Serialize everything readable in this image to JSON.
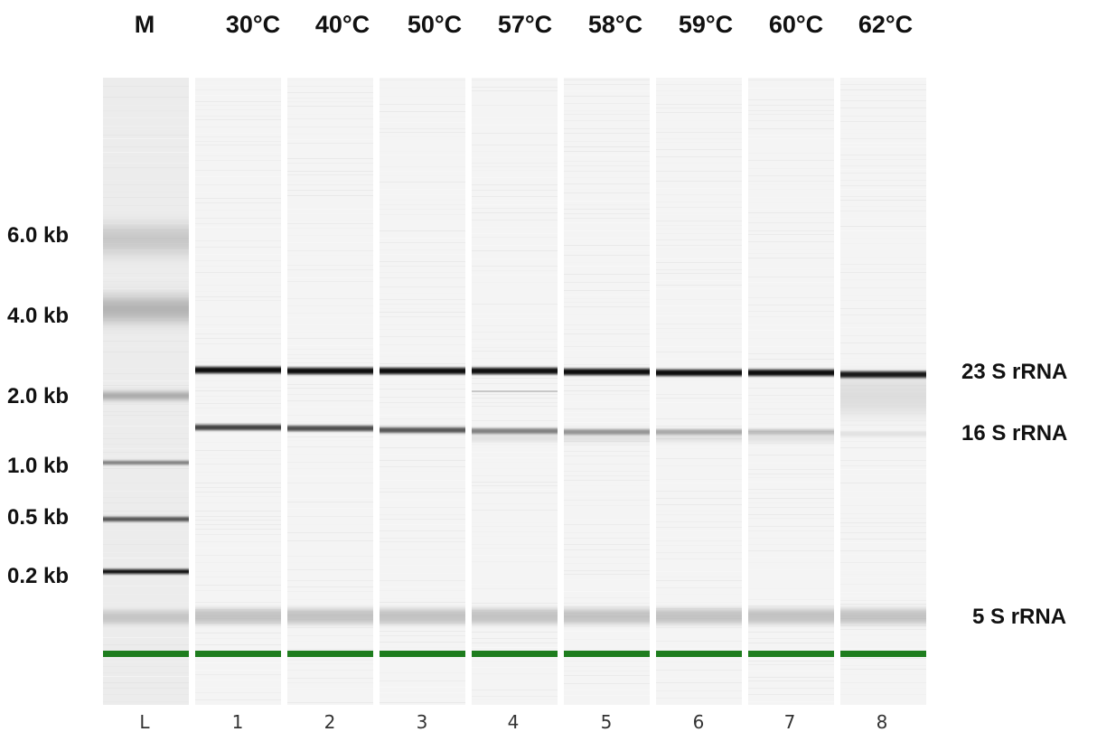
{
  "lanes": [
    {
      "header": "M",
      "id": "L"
    },
    {
      "header": "30°C",
      "id": "1"
    },
    {
      "header": "40°C",
      "id": "2"
    },
    {
      "header": "50°C",
      "id": "3"
    },
    {
      "header": "57°C",
      "id": "4"
    },
    {
      "header": "58°C",
      "id": "5"
    },
    {
      "header": "59°C",
      "id": "6"
    },
    {
      "header": "60°C",
      "id": "7"
    },
    {
      "header": "62°C",
      "id": "8"
    }
  ],
  "ladder_labels": [
    "6.0 kb",
    "4.0 kb",
    "2.0 kb",
    "1.0 kb",
    "0.5 kb",
    "0.2 kb"
  ],
  "rna_labels": [
    "23 S rRNA",
    "16 S rRNA",
    "5 S rRNA"
  ],
  "colors": {
    "lane_background": "#f4f4f4",
    "band_dark": "#111111",
    "marker_line": "#1e7d1e",
    "label_text": "#111111"
  }
}
